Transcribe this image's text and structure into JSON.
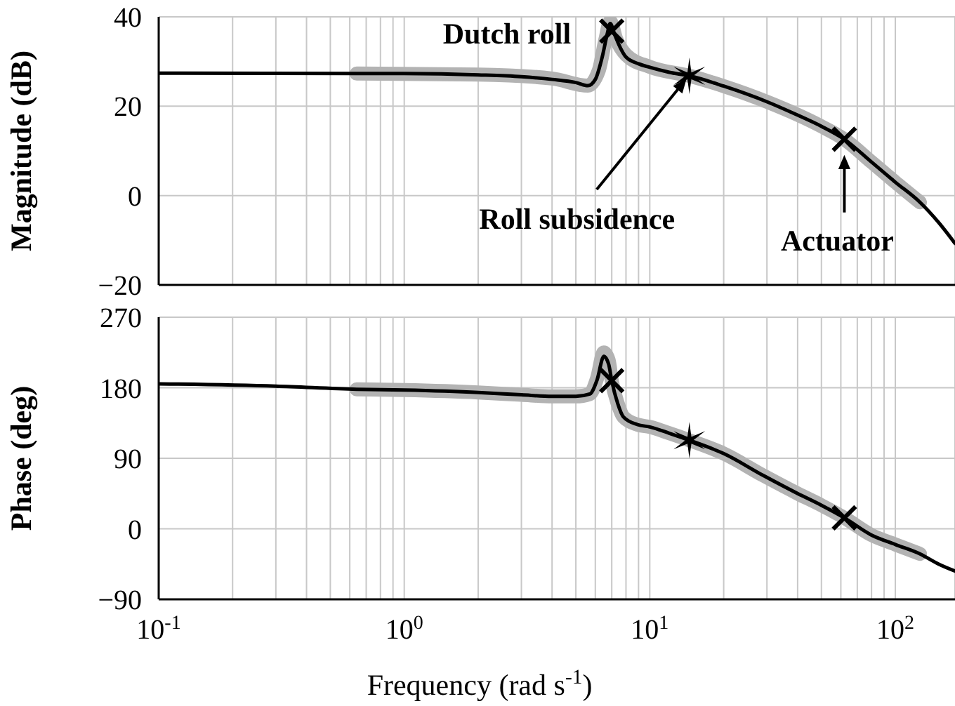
{
  "chart_data": [
    {
      "type": "line",
      "ylabel": "Magnitude (dB)",
      "log": "x",
      "grid": true,
      "tick_labels": "y",
      "xlim": [
        0.1,
        175
      ],
      "xticks": [
        0.1,
        0.2,
        0.3,
        0.4,
        0.5,
        0.6,
        0.7,
        0.8,
        0.9,
        1,
        2,
        3,
        4,
        5,
        6,
        7,
        8,
        9,
        10,
        20,
        30,
        40,
        50,
        60,
        70,
        80,
        90,
        100
      ],
      "ylim": [
        -20,
        40
      ],
      "yticks": [
        -20,
        0,
        20,
        40
      ],
      "series": [
        {
          "color": "#b3b3b3",
          "marker": "none",
          "x": [
            0.64,
            2,
            4,
            5.6,
            6.2,
            6.6,
            6.9,
            7.3,
            8,
            10,
            14.5,
            20,
            30,
            50,
            62,
            80,
            100,
            126
          ],
          "values": [
            27.3,
            27.1,
            26.2,
            24.6,
            28,
            35,
            39,
            35,
            31.5,
            28.8,
            26.8,
            24.5,
            21,
            15.5,
            12.6,
            7.5,
            3,
            -1.5
          ]
        },
        {
          "color": "#000000",
          "marker": "none",
          "x": [
            0.1,
            1,
            2,
            3,
            4,
            5,
            5.6,
            6,
            6.4,
            6.7,
            6.9,
            7.2,
            7.6,
            8,
            9,
            10,
            12,
            14.5,
            20,
            30,
            40,
            50,
            62,
            80,
            100,
            126,
            150,
            175
          ],
          "values": [
            27.4,
            27.3,
            27,
            26.6,
            26,
            25.3,
            24.6,
            26,
            31,
            36,
            38.5,
            36,
            33,
            31,
            29.5,
            28.7,
            27.6,
            26.8,
            24.5,
            21,
            18,
            15.5,
            12.6,
            7.5,
            3,
            -1.5,
            -6,
            -10.7
          ]
        },
        {
          "type": "scatter",
          "color": "#000000",
          "marker": "cross",
          "x": [
            7
          ],
          "values": [
            36.8
          ]
        },
        {
          "type": "scatter",
          "color": "#000000",
          "x": [
            14.5
          ],
          "values": [
            26.8
          ]
        },
        {
          "type": "scatter",
          "color": "#000000",
          "marker": "cross",
          "x": [
            62
          ],
          "values": [
            12.6
          ]
        }
      ],
      "annotations": [
        {
          "text": "Dutch roll",
          "x": 7,
          "y": 36.8
        },
        {
          "text": "Roll subsidence",
          "x": 14.5,
          "y": 26.8
        },
        {
          "text": "Actuator",
          "x": 62,
          "y": 9.1
        }
      ]
    },
    {
      "type": "line",
      "xlabel": "Frequency (rad s$^{-1}$)",
      "ylabel": "Phase (deg)",
      "log": "x",
      "grid": true,
      "xlim": [
        0.1,
        175
      ],
      "xticks": [
        {
          "value": 0.1,
          "label": "10$^{-1}$"
        },
        {
          "value": 0.2,
          "label": null
        },
        {
          "value": 0.3,
          "label": null
        },
        {
          "value": 0.4,
          "label": null
        },
        {
          "value": 0.5,
          "label": null
        },
        {
          "value": 0.6,
          "label": null
        },
        {
          "value": 0.7,
          "label": null
        },
        {
          "value": 0.8,
          "label": null
        },
        {
          "value": 0.9,
          "label": null
        },
        {
          "value": 1,
          "label": "10$^{0}$"
        },
        {
          "value": 2,
          "label": null
        },
        {
          "value": 3,
          "label": null
        },
        {
          "value": 4,
          "label": null
        },
        {
          "value": 5,
          "label": null
        },
        {
          "value": 6,
          "label": null
        },
        {
          "value": 7,
          "label": null
        },
        {
          "value": 8,
          "label": null
        },
        {
          "value": 9,
          "label": null
        },
        {
          "value": 10,
          "label": "10$^{1}$"
        },
        {
          "value": 20,
          "label": null
        },
        {
          "value": 30,
          "label": null
        },
        {
          "value": 40,
          "label": null
        },
        {
          "value": 50,
          "label": null
        },
        {
          "value": 60,
          "label": null
        },
        {
          "value": 70,
          "label": null
        },
        {
          "value": 80,
          "label": null
        },
        {
          "value": 90,
          "label": null
        },
        {
          "value": 100,
          "label": "10$^{2}$"
        }
      ],
      "ylim": [
        -90,
        270
      ],
      "yticks": [
        -90,
        0,
        90,
        180,
        270
      ],
      "series": [
        {
          "color": "#b3b3b3",
          "marker": "none",
          "x": [
            0.64,
            1,
            2,
            3,
            4,
            5,
            5.7,
            6.1,
            6.5,
            6.8,
            7.0,
            7.4,
            7.8,
            8.9,
            10,
            12,
            14.5,
            20,
            29,
            40,
            50,
            62,
            80,
            100,
            126
          ],
          "values": [
            178,
            177,
            174,
            171,
            169,
            169,
            172,
            192,
            225,
            215,
            189,
            160,
            143,
            133,
            130,
            122,
            113,
            96,
            68,
            45,
            30,
            14,
            -8,
            -20,
            -32
          ]
        },
        {
          "color": "#000000",
          "marker": "none",
          "x": [
            0.1,
            0.3,
            0.64,
            1,
            2,
            3,
            4,
            5,
            5.7,
            6.1,
            6.5,
            6.8,
            7.0,
            7.4,
            7.8,
            8.9,
            10,
            12,
            14.5,
            20,
            29,
            40,
            50,
            62,
            80,
            100,
            126,
            150,
            175
          ],
          "values": [
            185,
            182,
            178,
            177,
            174,
            171,
            169,
            169,
            172,
            190,
            220,
            210,
            189,
            160,
            143,
            133,
            130,
            122,
            113,
            96,
            68,
            45,
            30,
            14,
            -8,
            -20,
            -32,
            -45,
            -54
          ]
        },
        {
          "type": "scatter",
          "color": "#000000",
          "marker": "cross",
          "x": [
            7
          ],
          "values": [
            189
          ]
        },
        {
          "type": "scatter",
          "color": "#000000",
          "x": [
            14.5
          ],
          "values": [
            113
          ]
        },
        {
          "type": "scatter",
          "color": "#000000",
          "marker": "cross",
          "x": [
            62
          ],
          "values": [
            14
          ]
        }
      ]
    }
  ]
}
